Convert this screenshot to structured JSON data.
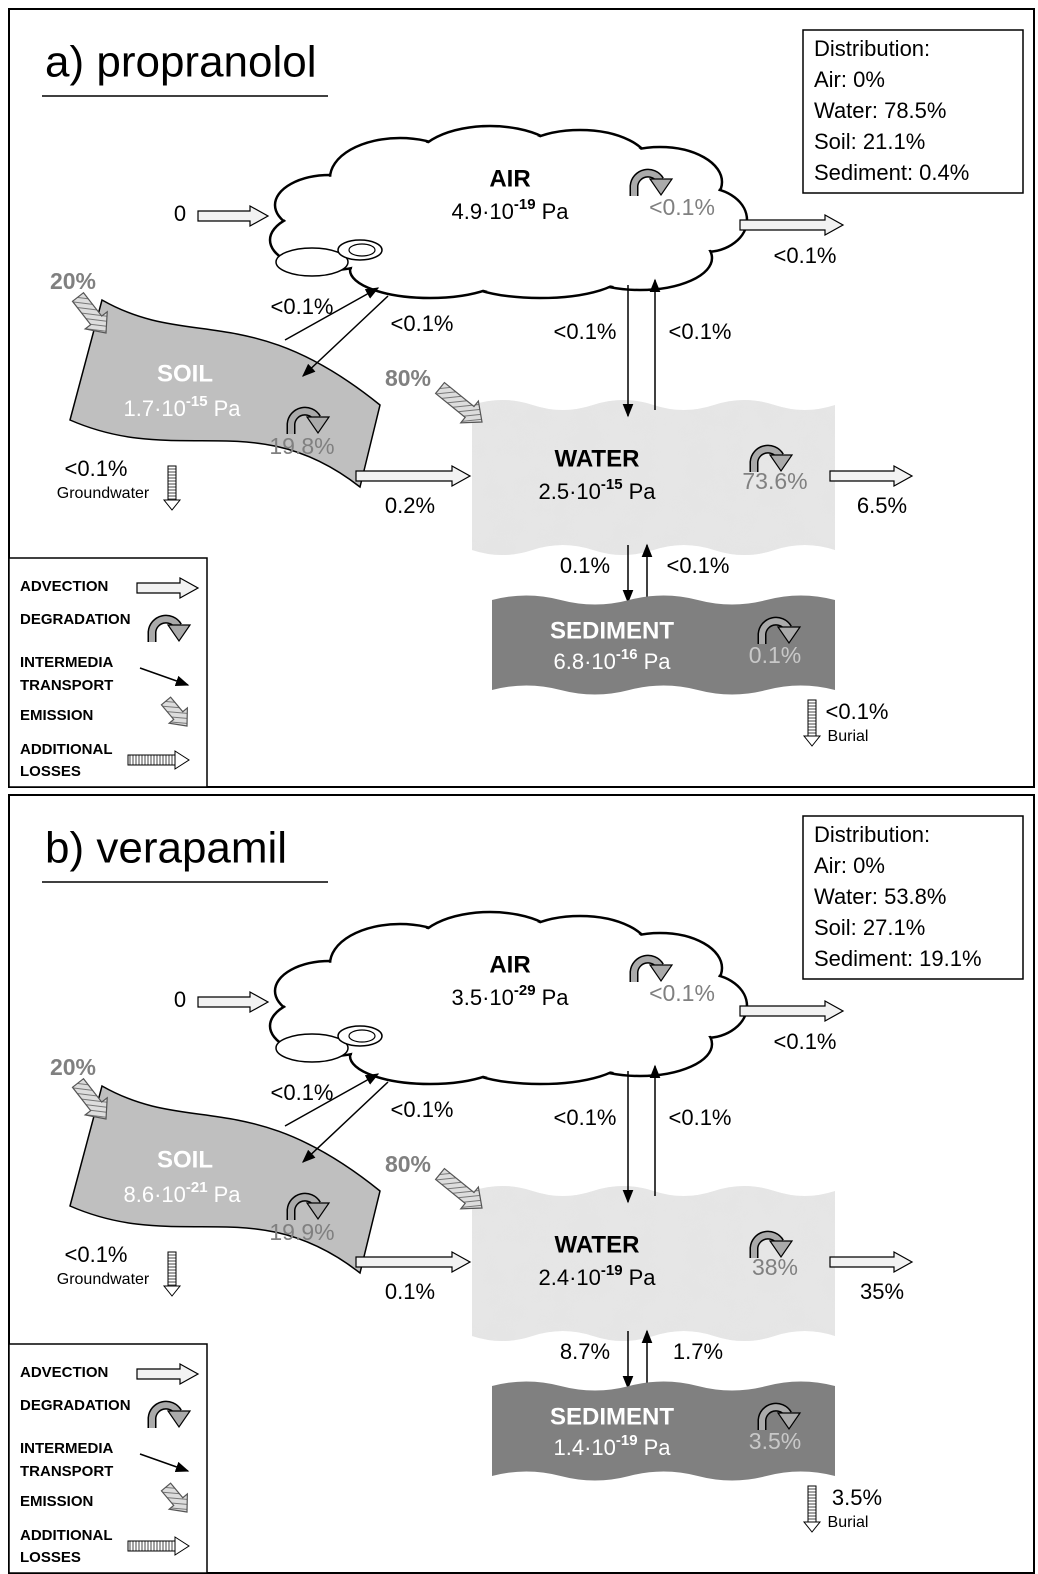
{
  "panels": [
    {
      "title": "a) propranolol",
      "distribution": [
        "Distribution:",
        "Air: 0%",
        "Water: 78.5%",
        "Soil: 21.1%",
        "Sediment: 0.4%"
      ],
      "air": {
        "name": "AIR",
        "pressure": {
          "base": "4.9·10",
          "exponent": "-19",
          "unit": "Pa"
        },
        "degradation": "<0.1%",
        "inflow": "0",
        "outflow": "<0.1%"
      },
      "soil": {
        "name": "SOIL",
        "pressure": {
          "base": "1.7·10",
          "exponent": "-15",
          "unit": "Pa"
        },
        "degradation": "19.8%",
        "emission": "20%",
        "to_air": "<0.1%",
        "from_air": "<0.1%",
        "to_water": "0.2%",
        "groundwater": "<0.1%",
        "groundwater_label": "Groundwater"
      },
      "water": {
        "name": "WATER",
        "pressure": {
          "base": "2.5·10",
          "exponent": "-15",
          "unit": "Pa"
        },
        "degradation": "73.6%",
        "emission": "80%",
        "from_air": "<0.1%",
        "to_air": "<0.1%",
        "outflow": "6.5%",
        "to_sediment": "0.1%",
        "from_sediment": "<0.1%"
      },
      "sediment": {
        "name": "SEDIMENT",
        "pressure": {
          "base": "6.8·10",
          "exponent": "-16",
          "unit": "Pa"
        },
        "degradation": "0.1%",
        "burial": "<0.1%",
        "burial_label": "Burial"
      },
      "legend": [
        "ADVECTION",
        "DEGRADATION",
        "INTERMEDIA",
        "TRANSPORT",
        "EMISSION",
        "ADDITIONAL",
        "LOSSES"
      ]
    },
    {
      "title": "b) verapamil",
      "distribution": [
        "Distribution:",
        "Air: 0%",
        "Water: 53.8%",
        "Soil: 27.1%",
        "Sediment: 19.1%"
      ],
      "air": {
        "name": "AIR",
        "pressure": {
          "base": "3.5·10",
          "exponent": "-29",
          "unit": "Pa"
        },
        "degradation": "<0.1%",
        "inflow": "0",
        "outflow": "<0.1%"
      },
      "soil": {
        "name": "SOIL",
        "pressure": {
          "base": "8.6·10",
          "exponent": "-21",
          "unit": "Pa"
        },
        "degradation": "19.9%",
        "emission": "20%",
        "to_air": "<0.1%",
        "from_air": "<0.1%",
        "to_water": "0.1%",
        "groundwater": "<0.1%",
        "groundwater_label": "Groundwater"
      },
      "water": {
        "name": "WATER",
        "pressure": {
          "base": "2.4·10",
          "exponent": "-19",
          "unit": "Pa"
        },
        "degradation": "38%",
        "emission": "80%",
        "from_air": "<0.1%",
        "to_air": "<0.1%",
        "outflow": "35%",
        "to_sediment": "8.7%",
        "from_sediment": "1.7%"
      },
      "sediment": {
        "name": "SEDIMENT",
        "pressure": {
          "base": "1.4·10",
          "exponent": "-19",
          "unit": "Pa"
        },
        "degradation": "3.5%",
        "burial": "3.5%",
        "burial_label": "Burial"
      },
      "legend": [
        "ADVECTION",
        "DEGRADATION",
        "INTERMEDIA",
        "TRANSPORT",
        "EMISSION",
        "ADDITIONAL",
        "LOSSES"
      ]
    }
  ]
}
